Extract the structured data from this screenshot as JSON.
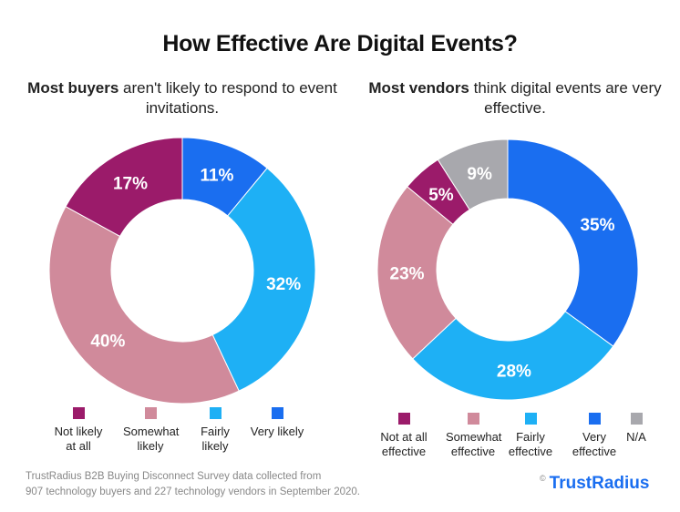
{
  "title": "How Effective Are Digital Events?",
  "chart_data": [
    {
      "type": "pie",
      "subtitle_bold": "Most buyers",
      "subtitle_rest": " aren't likely to respond to event invitations.",
      "categories": [
        "Very likely",
        "Fairly likely",
        "Somewhat likely",
        "Not likely at all"
      ],
      "values": [
        11,
        32,
        40,
        17
      ],
      "labels": [
        "11%",
        "32%",
        "40%",
        "17%"
      ],
      "colors": [
        "#1a6ef0",
        "#1eb0f5",
        "#d08a9b",
        "#9b1b6a"
      ],
      "legend": [
        "Not likely at all",
        "Somewhat likely",
        "Fairly likely",
        "Very likely"
      ],
      "legend_colors": [
        "#9b1b6a",
        "#d08a9b",
        "#1eb0f5",
        "#1a6ef0"
      ]
    },
    {
      "type": "pie",
      "subtitle_bold": "Most vendors",
      "subtitle_rest": " think digital events are very effective.",
      "categories": [
        "Very effective",
        "Fairly effective",
        "Somewhat effective",
        "Not at all effective",
        "N/A"
      ],
      "values": [
        35,
        28,
        23,
        5,
        9
      ],
      "labels": [
        "35%",
        "28%",
        "23%",
        "5%",
        "9%"
      ],
      "colors": [
        "#1a6ef0",
        "#1eb0f5",
        "#d08a9b",
        "#9b1b6a",
        "#a8a8ad"
      ],
      "legend": [
        "Not at all effective",
        "Somewhat effective",
        "Fairly effective",
        "Very effective",
        "N/A"
      ],
      "legend_colors": [
        "#9b1b6a",
        "#d08a9b",
        "#1eb0f5",
        "#1a6ef0",
        "#a8a8ad"
      ]
    }
  ],
  "footer": {
    "line1": "TrustRadius B2B Buying Disconnect Survey data collected from",
    "line2": "907 technology buyers and 227 technology vendors in September 2020."
  },
  "logo": {
    "copyright": "©",
    "text": "TrustRadius"
  }
}
